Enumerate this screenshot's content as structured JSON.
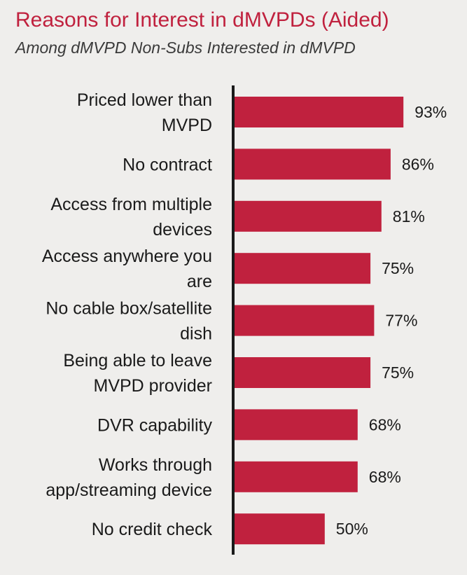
{
  "chart_data": {
    "type": "bar",
    "orientation": "horizontal",
    "title": "Reasons for Interest in dMVPDs (Aided)",
    "subtitle": "Among dMVPD Non-Subs Interested in dMVPD",
    "categories": [
      [
        "Priced lower than",
        "MVPD"
      ],
      [
        "No contract"
      ],
      [
        "Access from multiple",
        "devices"
      ],
      [
        "Access anywhere you",
        "are"
      ],
      [
        "No cable box/satellite",
        "dish"
      ],
      [
        "Being able to leave",
        "MVPD provider"
      ],
      [
        "DVR capability"
      ],
      [
        "Works through",
        "app/streaming device"
      ],
      [
        "No credit check"
      ]
    ],
    "values": [
      93,
      86,
      81,
      75,
      77,
      75,
      68,
      68,
      50
    ],
    "value_labels": [
      "93%",
      "86%",
      "81%",
      "75%",
      "77%",
      "75%",
      "68%",
      "68%",
      "50%"
    ],
    "xlim": [
      0,
      100
    ],
    "grid": false,
    "legend": "none",
    "colors": {
      "bar": "#c0213e",
      "axis": "#1a1a1a",
      "text": "#1a1a1a",
      "title": "#c0213e",
      "subtitle": "#3a3a3a",
      "background": "#efeeec"
    }
  }
}
